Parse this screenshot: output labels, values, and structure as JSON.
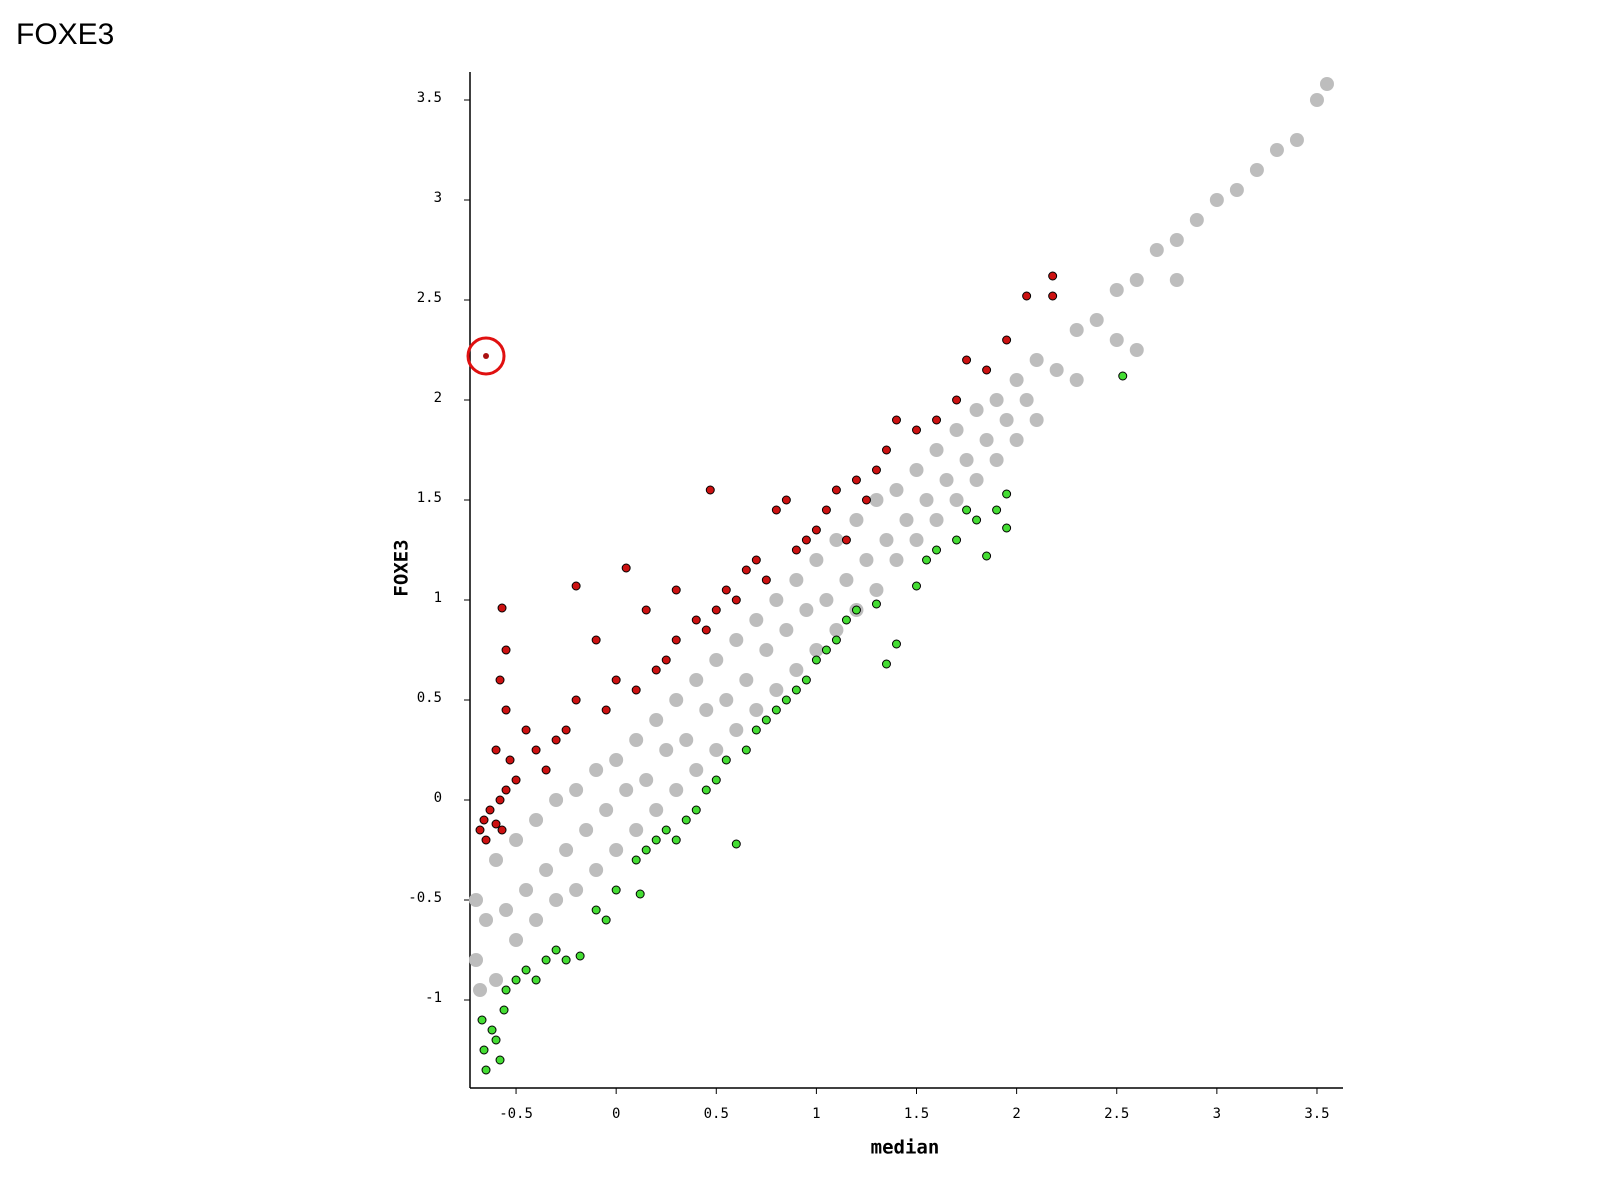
{
  "chart_data": {
    "type": "scatter",
    "title": "FOXE3",
    "x_label": "median",
    "y_label": "FOXE3",
    "xlim": [
      -0.73,
      3.63
    ],
    "ylim": [
      -1.44,
      3.64
    ],
    "xticks": [
      -0.5,
      0,
      0.5,
      1,
      1.5,
      2,
      2.5,
      3,
      3.5
    ],
    "yticks": [
      -1,
      -0.5,
      0,
      0.5,
      1,
      1.5,
      2,
      2.5,
      3,
      3.5
    ],
    "series": [
      {
        "color": "#bdbdbd",
        "outline": false,
        "x": [
          -0.7,
          -0.7,
          -0.68,
          -0.65,
          -0.6,
          -0.6,
          -0.55,
          -0.5,
          -0.5,
          -0.45,
          -0.4,
          -0.4,
          -0.35,
          -0.3,
          -0.3,
          -0.25,
          -0.2,
          -0.2,
          -0.15,
          -0.1,
          -0.1,
          -0.05,
          0,
          0,
          0.05,
          0.1,
          0.1,
          0.15,
          0.2,
          0.2,
          0.25,
          0.3,
          0.3,
          0.35,
          0.4,
          0.4,
          0.45,
          0.5,
          0.5,
          0.55,
          0.6,
          0.6,
          0.65,
          0.7,
          0.7,
          0.75,
          0.8,
          0.8,
          0.85,
          0.9,
          0.9,
          0.95,
          1.0,
          1.0,
          1.05,
          1.1,
          1.1,
          1.15,
          1.2,
          1.2,
          1.25,
          1.3,
          1.3,
          1.35,
          1.4,
          1.4,
          1.45,
          1.5,
          1.5,
          1.55,
          1.6,
          1.6,
          1.65,
          1.7,
          1.7,
          1.75,
          1.8,
          1.8,
          1.85,
          1.9,
          1.9,
          1.95,
          2.0,
          2.0,
          2.05,
          2.1,
          2.1,
          2.2,
          2.3,
          2.3,
          2.4,
          2.5,
          2.5,
          2.6,
          2.7,
          2.8,
          2.9,
          3.0,
          3.1,
          3.2,
          3.3,
          3.4,
          3.5,
          3.55,
          2.6,
          2.8
        ],
        "values": [
          -0.5,
          -0.8,
          -0.95,
          -0.6,
          -0.3,
          -0.9,
          -0.55,
          -0.2,
          -0.7,
          -0.45,
          -0.1,
          -0.6,
          -0.35,
          0.0,
          -0.5,
          -0.25,
          0.05,
          -0.45,
          -0.15,
          0.15,
          -0.35,
          -0.05,
          0.2,
          -0.25,
          0.05,
          0.3,
          -0.15,
          0.1,
          0.4,
          -0.05,
          0.25,
          0.5,
          0.05,
          0.3,
          0.6,
          0.15,
          0.45,
          0.7,
          0.25,
          0.5,
          0.8,
          0.35,
          0.6,
          0.9,
          0.45,
          0.75,
          1.0,
          0.55,
          0.85,
          1.1,
          0.65,
          0.95,
          1.2,
          0.75,
          1.0,
          1.3,
          0.85,
          1.1,
          1.4,
          0.95,
          1.2,
          1.5,
          1.05,
          1.3,
          1.55,
          1.2,
          1.4,
          1.65,
          1.3,
          1.5,
          1.75,
          1.4,
          1.6,
          1.85,
          1.5,
          1.7,
          1.95,
          1.6,
          1.8,
          2.0,
          1.7,
          1.9,
          2.1,
          1.8,
          2.0,
          2.2,
          1.9,
          2.15,
          2.35,
          2.1,
          2.4,
          2.55,
          2.3,
          2.6,
          2.75,
          2.8,
          2.9,
          3.0,
          3.05,
          3.15,
          3.25,
          3.3,
          3.5,
          3.58,
          2.25,
          2.6
        ]
      },
      {
        "color": "#cc1111",
        "outline": true,
        "x": [
          -0.68,
          -0.66,
          -0.65,
          -0.63,
          -0.6,
          -0.58,
          -0.57,
          -0.55,
          -0.6,
          -0.58,
          -0.55,
          -0.57,
          -0.55,
          -0.53,
          -0.5,
          -0.45,
          -0.4,
          -0.35,
          -0.3,
          -0.25,
          -0.2,
          -0.2,
          -0.1,
          -0.05,
          0.0,
          0.05,
          0.1,
          0.15,
          0.2,
          0.25,
          0.3,
          0.3,
          0.4,
          0.45,
          0.47,
          0.5,
          0.55,
          0.6,
          0.65,
          0.7,
          0.75,
          0.8,
          0.85,
          0.9,
          0.95,
          1.0,
          1.05,
          1.1,
          1.15,
          1.2,
          1.25,
          1.3,
          1.35,
          1.4,
          1.5,
          1.6,
          1.7,
          1.75,
          1.85,
          1.95,
          2.05,
          2.18,
          2.18
        ],
        "values": [
          -0.15,
          -0.1,
          -0.2,
          -0.05,
          -0.12,
          0.0,
          -0.15,
          0.05,
          0.25,
          0.6,
          0.75,
          0.96,
          0.45,
          0.2,
          0.1,
          0.35,
          0.25,
          0.15,
          0.3,
          0.35,
          0.5,
          1.07,
          0.8,
          0.45,
          0.6,
          1.16,
          0.55,
          0.95,
          0.65,
          0.7,
          0.8,
          1.05,
          0.9,
          0.85,
          1.55,
          0.95,
          1.05,
          1.0,
          1.15,
          1.2,
          1.1,
          1.45,
          1.5,
          1.25,
          1.3,
          1.35,
          1.45,
          1.55,
          1.3,
          1.6,
          1.5,
          1.65,
          1.75,
          1.9,
          1.85,
          1.9,
          2.0,
          2.2,
          2.15,
          2.3,
          2.52,
          2.62,
          2.52
        ]
      },
      {
        "color": "#44dd33",
        "outline": true,
        "x": [
          -0.67,
          -0.66,
          -0.65,
          -0.62,
          -0.6,
          -0.58,
          -0.56,
          -0.55,
          -0.5,
          -0.45,
          -0.4,
          -0.35,
          -0.3,
          -0.25,
          -0.18,
          -0.1,
          -0.05,
          0.0,
          0.1,
          0.12,
          0.15,
          0.2,
          0.25,
          0.3,
          0.35,
          0.4,
          0.45,
          0.5,
          0.55,
          0.6,
          0.65,
          0.7,
          0.75,
          0.8,
          0.85,
          0.9,
          0.95,
          1.0,
          1.05,
          1.1,
          1.15,
          1.2,
          1.3,
          1.35,
          1.4,
          1.5,
          1.55,
          1.6,
          1.7,
          1.75,
          1.8,
          1.85,
          1.9,
          1.95,
          1.95,
          2.53
        ],
        "values": [
          -1.1,
          -1.25,
          -1.35,
          -1.15,
          -1.2,
          -1.3,
          -1.05,
          -0.95,
          -0.9,
          -0.85,
          -0.9,
          -0.8,
          -0.75,
          -0.8,
          -0.78,
          -0.55,
          -0.6,
          -0.45,
          -0.3,
          -0.47,
          -0.25,
          -0.2,
          -0.15,
          -0.2,
          -0.1,
          -0.05,
          0.05,
          0.1,
          0.2,
          -0.22,
          0.25,
          0.35,
          0.4,
          0.45,
          0.5,
          0.55,
          0.6,
          0.7,
          0.75,
          0.8,
          0.9,
          0.95,
          0.98,
          0.68,
          0.78,
          1.07,
          1.2,
          1.25,
          1.3,
          1.45,
          1.4,
          1.22,
          1.45,
          1.36,
          1.53,
          2.12
        ]
      },
      {
        "color": "#aa1111",
        "outline": false,
        "ring": "#e01010",
        "x": [
          -0.65
        ],
        "values": [
          2.22
        ]
      }
    ]
  }
}
